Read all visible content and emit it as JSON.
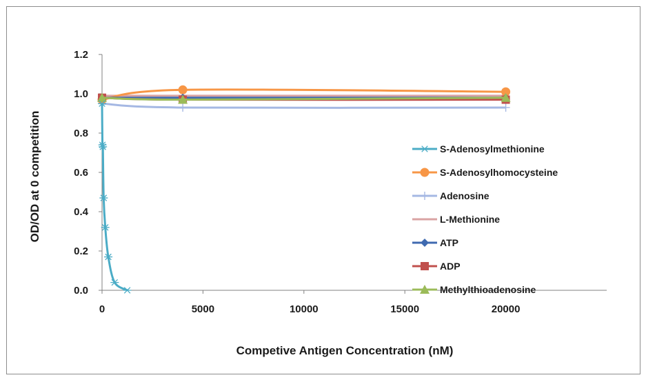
{
  "chart_data": {
    "type": "line",
    "title": "",
    "xlabel": "Competive Antigen Concentration (nM)",
    "ylabel": "OD/OD at 0 competition",
    "xlim": [
      0,
      25000
    ],
    "ylim": [
      0,
      1.2
    ],
    "xticks": [
      0,
      5000,
      10000,
      15000,
      20000
    ],
    "xtick_labels": [
      "0",
      "5000",
      "10000",
      "15000",
      "20000"
    ],
    "yticks": [
      0,
      0.2,
      0.4,
      0.6,
      0.8,
      1.0,
      1.2
    ],
    "ytick_labels": [
      "0.0",
      "0.2",
      "0.4",
      "0.6",
      "0.8",
      "1.0",
      "1.2"
    ],
    "grid": false,
    "legend_position": "right",
    "series": [
      {
        "name": "S-Adenosylmethionine",
        "color": "#4bacc6",
        "marker": "star",
        "x": [
          0,
          20,
          40,
          80,
          160,
          310,
          625,
          1250
        ],
        "y": [
          0.95,
          0.74,
          0.73,
          0.47,
          0.32,
          0.17,
          0.04,
          0.0
        ]
      },
      {
        "name": "S-Adenosylhomocysteine",
        "color": "#f79646",
        "marker": "circle",
        "x": [
          0,
          4000,
          20000
        ],
        "y": [
          0.97,
          1.02,
          1.01
        ]
      },
      {
        "name": "Adenosine",
        "color": "#a5b8e3",
        "marker": "plus",
        "x": [
          0,
          4000,
          20000
        ],
        "y": [
          0.95,
          0.93,
          0.93
        ]
      },
      {
        "name": "L-Methionine",
        "color": "#d9a3a3",
        "marker": "none",
        "x": [
          0,
          4000,
          20000
        ],
        "y": [
          0.99,
          0.99,
          0.99
        ]
      },
      {
        "name": "ATP",
        "color": "#3f6ab0",
        "marker": "diamond",
        "x": [
          0,
          4000,
          20000
        ],
        "y": [
          0.98,
          0.98,
          0.98
        ]
      },
      {
        "name": "ADP",
        "color": "#c0504d",
        "marker": "square",
        "x": [
          0,
          4000,
          20000
        ],
        "y": [
          0.98,
          0.97,
          0.97
        ]
      },
      {
        "name": "Methylthioadenosine",
        "color": "#9bbb59",
        "marker": "triangle",
        "x": [
          0,
          4000,
          20000
        ],
        "y": [
          0.98,
          0.97,
          0.98
        ]
      }
    ]
  }
}
